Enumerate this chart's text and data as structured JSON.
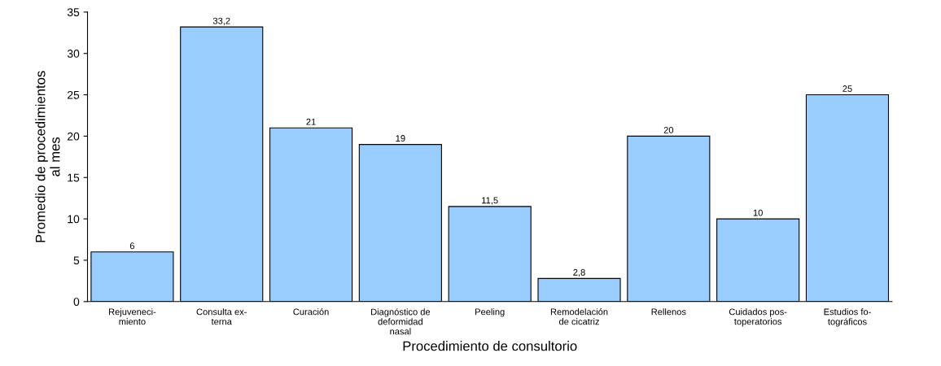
{
  "chart_data": {
    "type": "bar",
    "xlabel": "Procedimiento de consultorio",
    "ylabel": "Promedio de procedimientos\nal mes",
    "categories": [
      "Rejuveneci-\nmiento",
      "Consulta ex-\nterna",
      "Curación",
      "Diagnóstico de\ndeformidad\nnasal",
      "Peeling",
      "Remodelación\nde cicatriz",
      "Rellenos",
      "Cuidados pos-\ntoperatorios",
      "Estudios fo-\ntográficos"
    ],
    "values": [
      6,
      33.2,
      21,
      19,
      11.5,
      2.8,
      20,
      10,
      25
    ],
    "value_labels": [
      "6",
      "33,2",
      "21",
      "19",
      "11,5",
      "2,8",
      "20",
      "10",
      "25"
    ],
    "color": "#99ccff",
    "ylim": [
      0,
      35
    ],
    "yticks": [
      0,
      5,
      10,
      15,
      20,
      25,
      30,
      35
    ],
    "grid": false,
    "legend": false
  }
}
